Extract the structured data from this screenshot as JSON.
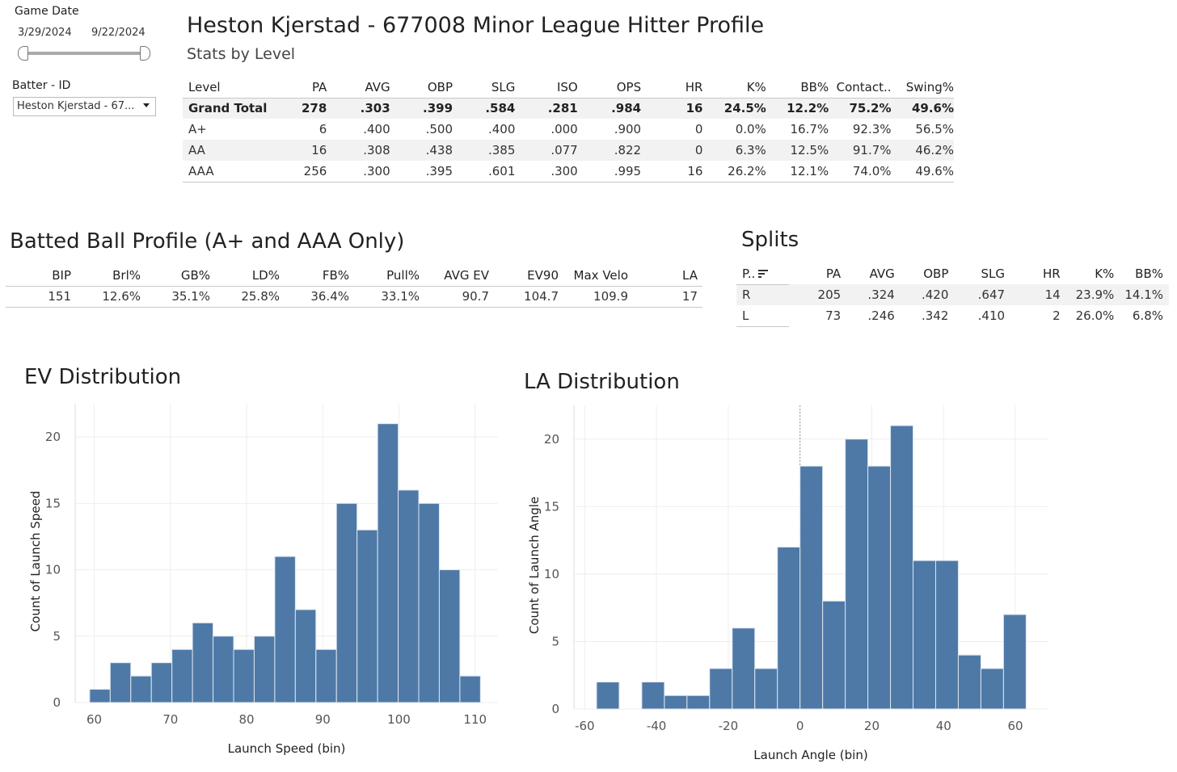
{
  "filters": {
    "date_title": "Game Date",
    "date_start": "3/29/2024",
    "date_end": "9/22/2024",
    "slider_range": [
      0,
      1
    ],
    "batter_label": "Batter - ID",
    "batter_value": "Heston Kjerstad - 67..."
  },
  "header": {
    "title": "Heston Kjerstad - 677008 Minor League Hitter Profile",
    "subtitle": "Stats by Level"
  },
  "level_table": {
    "columns": [
      "Level",
      "PA",
      "AVG",
      "OBP",
      "SLG",
      "ISO",
      "OPS",
      "HR",
      "K%",
      "BB%",
      "Contact..",
      "Swing%"
    ],
    "rows": [
      [
        "Grand Total",
        "278",
        ".303",
        ".399",
        ".584",
        ".281",
        ".984",
        "16",
        "24.5%",
        "12.2%",
        "75.2%",
        "49.6%"
      ],
      [
        "A+",
        "6",
        ".400",
        ".500",
        ".400",
        ".000",
        ".900",
        "0",
        "0.0%",
        "16.7%",
        "92.3%",
        "56.5%"
      ],
      [
        "AA",
        "16",
        ".308",
        ".438",
        ".385",
        ".077",
        ".822",
        "0",
        "6.3%",
        "12.5%",
        "91.7%",
        "46.2%"
      ],
      [
        "AAA",
        "256",
        ".300",
        ".395",
        ".601",
        ".300",
        ".995",
        "16",
        "26.2%",
        "12.1%",
        "74.0%",
        "49.6%"
      ]
    ]
  },
  "batted_ball": {
    "title": "Batted Ball Profile (A+ and AAA Only)",
    "columns": [
      "BIP",
      "Brl%",
      "GB%",
      "LD%",
      "FB%",
      "Pull%",
      "AVG EV",
      "EV90",
      "Max Velo",
      "LA"
    ],
    "values": [
      "151",
      "12.6%",
      "35.1%",
      "25.8%",
      "36.4%",
      "33.1%",
      "90.7",
      "104.7",
      "109.9",
      "17"
    ]
  },
  "splits": {
    "title": "Splits",
    "columns": [
      "P..",
      "PA",
      "AVG",
      "OBP",
      "SLG",
      "HR",
      "K%",
      "BB%"
    ],
    "rows": [
      [
        "R",
        "205",
        ".324",
        ".420",
        ".647",
        "14",
        "23.9%",
        "14.1%"
      ],
      [
        "L",
        "73",
        ".246",
        ".342",
        ".410",
        "2",
        "26.0%",
        "6.8%"
      ]
    ]
  },
  "chart_data": [
    {
      "type": "bar",
      "title": "EV Distribution",
      "xlabel": "Launch Speed (bin)",
      "ylabel": "Count of Launch Speed",
      "bin_width": 2.7,
      "x": [
        59.4,
        62.1,
        64.8,
        67.5,
        70.2,
        72.9,
        75.6,
        78.3,
        81.0,
        83.7,
        86.4,
        89.1,
        91.8,
        94.5,
        97.2,
        99.9,
        102.6,
        105.3,
        108.0
      ],
      "values": [
        1,
        3,
        2,
        3,
        4,
        6,
        5,
        4,
        5,
        11,
        7,
        4,
        15,
        13,
        21,
        16,
        15,
        10,
        2
      ],
      "xlim": [
        57.5,
        113
      ],
      "ylim": [
        0,
        22.5
      ],
      "xticks": [
        60,
        70,
        80,
        90,
        100,
        110
      ],
      "yticks": [
        0,
        5,
        10,
        15,
        20
      ]
    },
    {
      "type": "bar",
      "title": "LA Distribution",
      "xlabel": "Launch Angle (bin)",
      "ylabel": "Count of Launch Angle",
      "bin_width": 6.3,
      "x": [
        -56.7,
        -44.1,
        -37.8,
        -31.5,
        -25.2,
        -18.9,
        -12.6,
        -6.3,
        0.0,
        6.3,
        12.6,
        18.9,
        25.2,
        31.5,
        37.8,
        44.1,
        50.4,
        56.7
      ],
      "values": [
        2,
        2,
        1,
        1,
        3,
        6,
        3,
        12,
        18,
        8,
        20,
        18,
        21,
        11,
        11,
        4,
        3,
        7
      ],
      "xlim": [
        -63,
        69
      ],
      "ylim": [
        0,
        22.5
      ],
      "xticks": [
        -60,
        -40,
        -20,
        0,
        20,
        40,
        60
      ],
      "yticks": [
        0,
        5,
        10,
        15,
        20
      ],
      "reference_line_x": 0
    }
  ],
  "colors": {
    "bar": "#4e79a7",
    "grid": "#eeeeee",
    "text": "#333333"
  }
}
